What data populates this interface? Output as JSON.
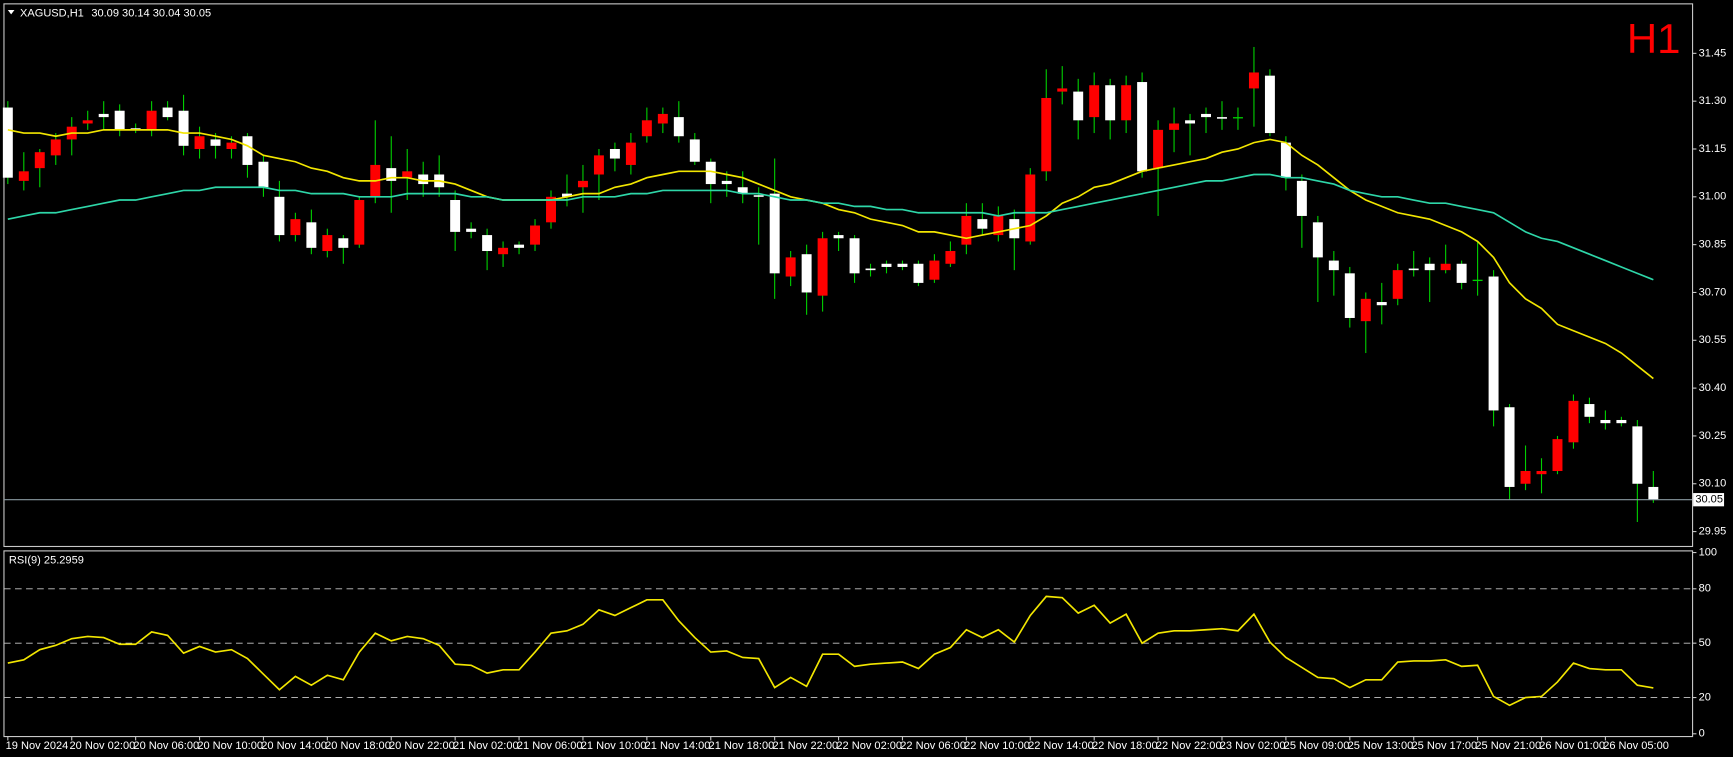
{
  "chart_data": [
    {
      "type": "candlestick",
      "symbol": "XAGUSD,H1",
      "timeframe_label": "H1",
      "categories": [
        "19 Nov 2024",
        null,
        null,
        null,
        "20 Nov 02:00",
        null,
        null,
        null,
        "20 Nov 06:00",
        null,
        null,
        null,
        "20 Nov 10:00",
        null,
        null,
        null,
        "20 Nov 14:00",
        null,
        null,
        null,
        "20 Nov 18:00",
        null,
        null,
        null,
        "20 Nov 22:00",
        null,
        null,
        null,
        "21 Nov 02:00",
        null,
        null,
        null,
        "21 Nov 06:00",
        null,
        null,
        null,
        "21 Nov 10:00",
        null,
        null,
        null,
        "21 Nov 14:00",
        null,
        null,
        null,
        "21 Nov 18:00",
        null,
        null,
        null,
        "21 Nov 22:00",
        null,
        null,
        null,
        "22 Nov 02:00",
        null,
        null,
        null,
        "22 Nov 06:00",
        null,
        null,
        null,
        "22 Nov 10:00",
        null,
        null,
        null,
        "22 Nov 14:00",
        null,
        null,
        null,
        "22 Nov 18:00",
        null,
        null,
        null,
        "22 Nov 22:00",
        null,
        null,
        null,
        "23 Nov 02:00",
        null,
        null,
        null,
        "25 Nov 09:00",
        null,
        null,
        null,
        "25 Nov 13:00",
        null,
        null,
        null,
        "25 Nov 17:00",
        null,
        null,
        null,
        "25 Nov 21:00",
        null,
        null,
        null,
        "26 Nov 01:00",
        null,
        null,
        null,
        "26 Nov 05:00",
        null,
        null,
        null
      ],
      "open": [
        31.28,
        31.05,
        31.09,
        31.13,
        31.18,
        31.23,
        31.26,
        31.27,
        31.215,
        31.21,
        31.28,
        31.27,
        31.15,
        31.18,
        31.15,
        31.19,
        31.11,
        31.0,
        30.88,
        30.92,
        30.83,
        30.87,
        30.85,
        31.0,
        31.09,
        31.06,
        31.07,
        31.07,
        30.99,
        30.9,
        30.88,
        30.82,
        30.85,
        30.85,
        30.92,
        31.01,
        31.03,
        31.07,
        31.15,
        31.1,
        31.19,
        31.23,
        31.25,
        31.18,
        31.11,
        31.05,
        31.03,
        31.005,
        31.01,
        30.75,
        30.82,
        30.69,
        30.88,
        30.87,
        30.775,
        30.79,
        30.79,
        30.79,
        30.74,
        30.79,
        30.85,
        30.93,
        30.88,
        30.93,
        30.86,
        31.08,
        31.33,
        31.33,
        31.25,
        31.35,
        31.24,
        31.36,
        31.09,
        31.21,
        31.24,
        31.26,
        31.25,
        31.25,
        31.34,
        31.38,
        31.17,
        31.05,
        30.92,
        30.8,
        30.76,
        30.61,
        30.67,
        30.68,
        30.775,
        30.79,
        30.77,
        30.79,
        30.74,
        30.75,
        30.34,
        30.1,
        30.13,
        30.14,
        30.23,
        30.35,
        30.3,
        30.3,
        30.28,
        30.09
      ],
      "high": [
        31.3,
        31.14,
        31.15,
        31.2,
        31.25,
        31.27,
        31.3,
        31.29,
        31.23,
        31.3,
        31.3,
        31.32,
        31.22,
        31.2,
        31.19,
        31.2,
        31.13,
        31.05,
        30.95,
        30.96,
        30.9,
        30.88,
        31.0,
        31.24,
        31.19,
        31.15,
        31.11,
        31.13,
        31.02,
        30.92,
        30.9,
        30.86,
        30.86,
        30.93,
        31.02,
        31.07,
        31.1,
        31.15,
        31.17,
        31.2,
        31.28,
        31.28,
        31.3,
        31.2,
        31.12,
        31.08,
        31.08,
        31.03,
        31.12,
        30.83,
        30.85,
        30.89,
        30.89,
        30.88,
        30.79,
        30.8,
        30.8,
        30.8,
        30.82,
        30.86,
        30.98,
        30.98,
        30.97,
        30.96,
        31.09,
        31.4,
        31.41,
        31.37,
        31.39,
        31.37,
        31.38,
        31.39,
        31.24,
        31.28,
        31.26,
        31.28,
        31.3,
        31.28,
        31.47,
        31.4,
        31.19,
        31.07,
        30.94,
        30.83,
        30.78,
        30.7,
        30.73,
        30.79,
        30.83,
        30.81,
        30.85,
        30.8,
        30.86,
        30.77,
        30.35,
        30.22,
        30.18,
        30.25,
        30.38,
        30.37,
        30.33,
        30.31,
        30.3,
        30.14
      ],
      "low": [
        31.04,
        31.02,
        31.03,
        31.1,
        31.13,
        31.21,
        31.21,
        31.19,
        31.2,
        31.19,
        31.24,
        31.13,
        31.12,
        31.12,
        31.12,
        31.06,
        31.0,
        30.86,
        30.86,
        30.82,
        30.81,
        30.79,
        30.84,
        30.98,
        30.95,
        30.99,
        31.0,
        31.0,
        30.83,
        30.87,
        30.77,
        30.78,
        30.82,
        30.83,
        30.9,
        30.97,
        30.95,
        30.99,
        31.08,
        31.07,
        31.17,
        31.2,
        31.17,
        31.1,
        30.98,
        31.0,
        30.98,
        30.85,
        30.68,
        30.72,
        30.63,
        30.64,
        30.83,
        30.73,
        30.75,
        30.76,
        30.77,
        30.72,
        30.73,
        30.78,
        30.82,
        30.88,
        30.86,
        30.77,
        30.85,
        31.05,
        31.29,
        31.18,
        31.2,
        31.18,
        31.2,
        31.06,
        30.94,
        31.14,
        31.13,
        31.2,
        31.21,
        31.21,
        31.22,
        31.19,
        31.02,
        30.84,
        30.67,
        30.69,
        30.59,
        30.51,
        30.6,
        30.66,
        30.75,
        30.67,
        30.76,
        30.71,
        30.69,
        30.28,
        30.05,
        30.08,
        30.07,
        30.13,
        30.21,
        30.29,
        30.27,
        30.28,
        29.98,
        30.04
      ],
      "close": [
        31.06,
        31.08,
        31.14,
        31.18,
        31.22,
        31.24,
        31.25,
        31.21,
        31.21,
        31.27,
        31.25,
        31.16,
        31.19,
        31.16,
        31.17,
        31.1,
        31.03,
        30.88,
        30.93,
        30.84,
        30.88,
        30.84,
        30.99,
        31.1,
        31.05,
        31.08,
        31.04,
        31.03,
        30.89,
        30.89,
        30.83,
        30.84,
        30.84,
        30.91,
        31.0,
        31.0,
        31.05,
        31.13,
        31.12,
        31.17,
        31.24,
        31.26,
        31.19,
        31.11,
        31.04,
        31.04,
        31.01,
        31.0,
        30.76,
        30.81,
        30.7,
        30.87,
        30.87,
        30.76,
        30.77,
        30.78,
        30.78,
        30.73,
        30.8,
        30.83,
        30.94,
        30.9,
        30.94,
        30.87,
        31.07,
        31.31,
        31.34,
        31.24,
        31.35,
        31.24,
        31.35,
        31.08,
        31.21,
        31.23,
        31.23,
        31.25,
        31.245,
        31.25,
        31.39,
        31.2,
        31.06,
        30.94,
        30.81,
        30.77,
        30.62,
        30.68,
        30.66,
        30.77,
        30.77,
        30.77,
        30.79,
        30.73,
        30.74,
        30.33,
        30.09,
        30.14,
        30.14,
        30.24,
        30.36,
        30.31,
        30.29,
        30.29,
        30.1,
        30.05
      ],
      "up_color": "#ff0000",
      "down_color": "#ffffff",
      "wick_color": "#00d000",
      "lines": [
        {
          "color": "#f2e600",
          "values": [
            31.21,
            31.2,
            31.2,
            31.19,
            31.2,
            31.2,
            31.21,
            31.21,
            31.21,
            31.21,
            31.21,
            31.2,
            31.2,
            31.19,
            31.18,
            31.16,
            31.13,
            31.12,
            31.11,
            31.09,
            31.08,
            31.06,
            31.05,
            31.05,
            31.06,
            31.06,
            31.05,
            31.05,
            31.04,
            31.02,
            31.0,
            30.99,
            30.99,
            30.99,
            30.99,
            31.0,
            31.01,
            31.01,
            31.03,
            31.04,
            31.06,
            31.07,
            31.08,
            31.08,
            31.08,
            31.07,
            31.06,
            31.04,
            31.02,
            31.0,
            30.99,
            30.98,
            30.96,
            30.95,
            30.93,
            30.92,
            30.91,
            30.89,
            30.89,
            30.88,
            30.87,
            30.88,
            30.89,
            30.9,
            30.91,
            30.94,
            30.98,
            31.0,
            31.03,
            31.04,
            31.06,
            31.08,
            31.09,
            31.1,
            31.11,
            31.12,
            31.14,
            31.15,
            31.17,
            31.18,
            31.17,
            31.13,
            31.1,
            31.06,
            31.02,
            30.99,
            30.97,
            30.95,
            30.94,
            30.93,
            30.91,
            30.89,
            30.86,
            30.81,
            30.73,
            30.68,
            30.65,
            30.6,
            30.58,
            30.56,
            30.54,
            30.51,
            30.47,
            30.43
          ]
        },
        {
          "color": "#2ed6a8",
          "values": [
            30.93,
            30.94,
            30.95,
            30.95,
            30.96,
            30.97,
            30.98,
            30.99,
            30.99,
            31.0,
            31.01,
            31.02,
            31.02,
            31.03,
            31.03,
            31.03,
            31.03,
            31.02,
            31.02,
            31.01,
            31.01,
            31.01,
            31.0,
            31.0,
            31.0,
            31.01,
            31.01,
            31.01,
            31.01,
            31.0,
            31.0,
            30.99,
            30.99,
            30.99,
            30.99,
            30.99,
            31.0,
            31.0,
            31.0,
            31.01,
            31.01,
            31.02,
            31.02,
            31.02,
            31.02,
            31.02,
            31.01,
            31.01,
            31.0,
            30.99,
            30.99,
            30.98,
            30.98,
            30.97,
            30.97,
            30.96,
            30.96,
            30.95,
            30.95,
            30.95,
            30.95,
            30.95,
            30.94,
            30.95,
            30.95,
            30.95,
            30.96,
            30.97,
            30.98,
            30.99,
            31.0,
            31.01,
            31.02,
            31.03,
            31.04,
            31.05,
            31.05,
            31.06,
            31.07,
            31.07,
            31.06,
            31.06,
            31.05,
            31.04,
            31.02,
            31.01,
            31.0,
            31.0,
            30.99,
            30.98,
            30.98,
            30.97,
            30.96,
            30.95,
            30.92,
            30.89,
            30.87,
            30.86,
            30.84,
            30.82,
            30.8,
            30.78,
            30.76,
            30.74
          ]
        }
      ],
      "price_line_color": "#8a9aa0",
      "ylim": [
        29.905,
        31.6
      ],
      "yticks": [
        29.95,
        {
          "value": 30.1,
          "label": "30.10"
        },
        30.25,
        {
          "value": 30.4,
          "label": "30.40"
        },
        30.55,
        {
          "value": 30.7,
          "label": "30.70"
        },
        30.85,
        {
          "value": 31.0,
          "label": "31.00"
        },
        31.15,
        {
          "value": 31.3,
          "label": "31.30"
        },
        31.45
      ]
    },
    {
      "type": "line",
      "label": "RSI(9)",
      "color": "#f2e600",
      "values": [
        39.0,
        40.8,
        46.4,
        48.8,
        52.5,
        53.7,
        53.1,
        49.4,
        49.4,
        56.2,
        54.3,
        44.5,
        48.2,
        45.1,
        46.4,
        41.5,
        32.9,
        24.3,
        31.7,
        26.8,
        32.3,
        29.8,
        45.1,
        55.5,
        51.3,
        53.7,
        52.5,
        48.8,
        38.4,
        37.8,
        33.5,
        35.3,
        35.3,
        45.1,
        55.5,
        56.8,
        60.4,
        68.4,
        65.3,
        69.6,
        73.9,
        73.9,
        62.3,
        53.1,
        45.1,
        45.7,
        42.1,
        41.5,
        25.5,
        31.1,
        26.2,
        43.9,
        43.9,
        37.2,
        38.4,
        39.0,
        39.6,
        36.0,
        43.9,
        47.6,
        57.4,
        53.1,
        57.4,
        50.6,
        65.3,
        75.8,
        75.1,
        66.6,
        70.9,
        61.1,
        66.0,
        50.0,
        55.5,
        56.8,
        56.8,
        57.4,
        58.0,
        56.8,
        66.0,
        50.6,
        42.1,
        36.6,
        31.1,
        30.4,
        25.5,
        29.8,
        29.8,
        39.6,
        40.2,
        40.2,
        40.8,
        37.2,
        37.8,
        20.6,
        15.7,
        20.0,
        20.6,
        28.6,
        39.0,
        36.0,
        35.3,
        35.3,
        26.8,
        25.2959
      ],
      "ylim": [
        0,
        100
      ],
      "yticks": [
        0,
        20,
        50,
        80,
        100
      ],
      "levels": [
        20,
        50,
        80
      ]
    }
  ]
}
